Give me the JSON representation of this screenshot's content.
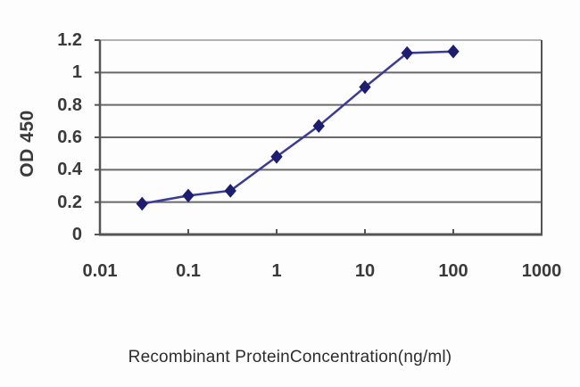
{
  "chart_data": {
    "type": "line",
    "title": "",
    "xlabel": "Recombinant ProteinConcentration(ng/ml)",
    "ylabel": "OD 450",
    "x_scale": "log",
    "xlim": [
      0.01,
      1000
    ],
    "ylim": [
      0,
      1.2
    ],
    "x": [
      0.03,
      0.1,
      0.3,
      1,
      3,
      10,
      30,
      100
    ],
    "values": [
      0.19,
      0.24,
      0.27,
      0.48,
      0.67,
      0.91,
      1.12,
      1.13
    ],
    "x_ticks": [
      0.01,
      0.1,
      1,
      10,
      100,
      1000
    ],
    "x_tick_labels": [
      "0.01",
      "0.1",
      "1",
      "10",
      "100",
      "1000"
    ],
    "y_ticks": [
      0,
      0.2,
      0.4,
      0.6,
      0.8,
      1,
      1.2
    ],
    "y_tick_labels": [
      "0",
      "0.2",
      "0.4",
      "0.6",
      "0.8",
      "1",
      "1.2"
    ],
    "grid": true,
    "legend": false,
    "marker": "diamond",
    "colors": {
      "line": "#3a3a9c",
      "marker": "#1d1d72",
      "grid": "#696969",
      "grid_top": "#9a9a9a",
      "axis": "#555555",
      "text": "#3a3a3a"
    }
  }
}
